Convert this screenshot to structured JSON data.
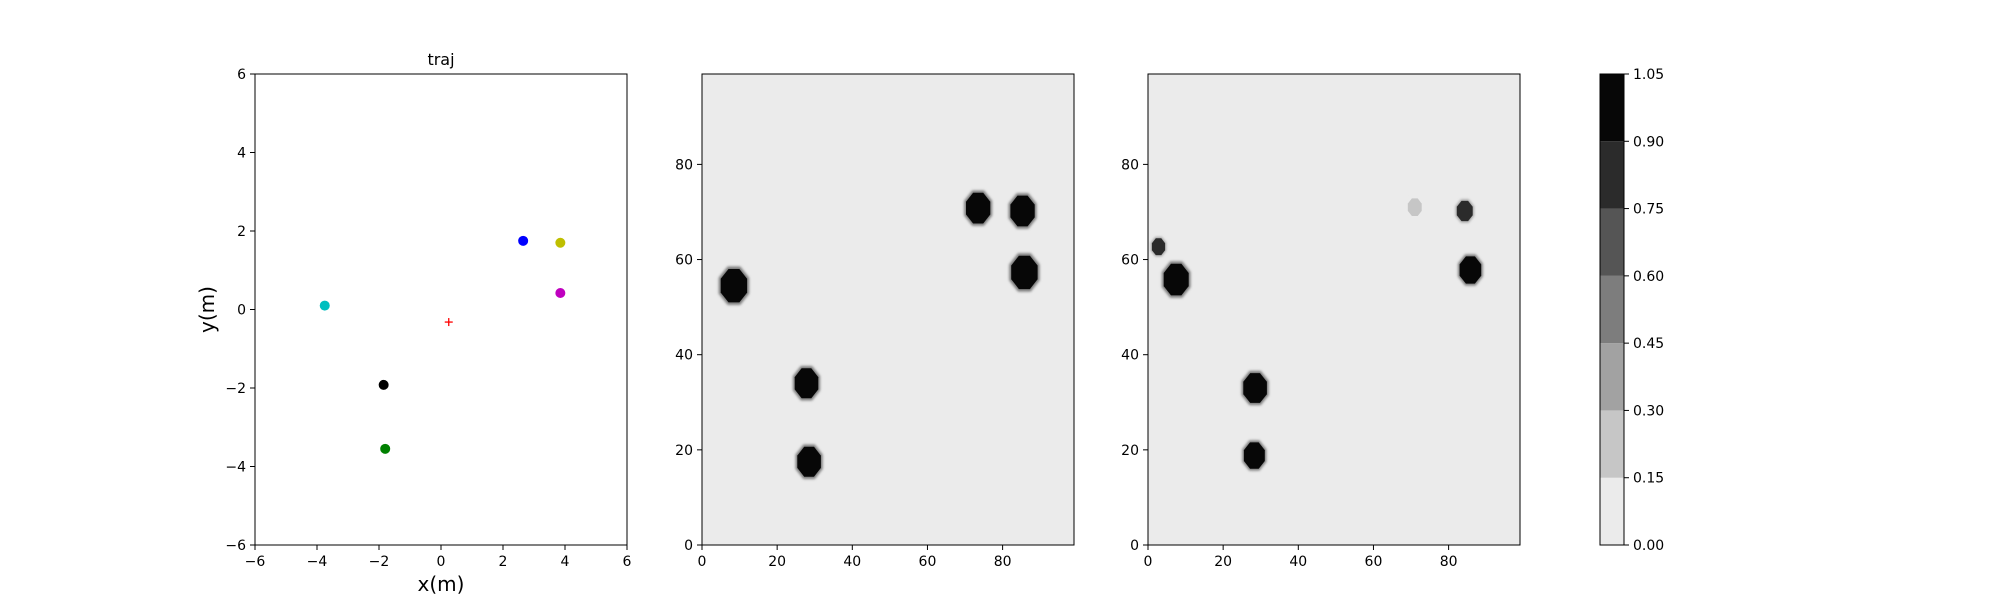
{
  "chart_data": [
    {
      "type": "scatter",
      "title": "traj",
      "xlabel": "x(m)",
      "ylabel": "y(m)",
      "xlim": [
        -6,
        6
      ],
      "ylim": [
        -6,
        6
      ],
      "xticks": [
        "−6",
        "−4",
        "−2",
        "0",
        "2",
        "4",
        "6"
      ],
      "yticks": [
        "−6",
        "−4",
        "−2",
        "0",
        "2",
        "4",
        "6"
      ],
      "grid": false,
      "points": [
        {
          "x": 2.65,
          "y": 1.75,
          "color": "#0000ff",
          "marker": "circle"
        },
        {
          "x": 3.85,
          "y": 1.7,
          "color": "#bfbf00",
          "marker": "circle"
        },
        {
          "x": 3.85,
          "y": 0.42,
          "color": "#bf00bf",
          "marker": "circle"
        },
        {
          "x": -3.75,
          "y": 0.1,
          "color": "#00bfbf",
          "marker": "circle"
        },
        {
          "x": -1.85,
          "y": -1.92,
          "color": "#000000",
          "marker": "circle"
        },
        {
          "x": -1.8,
          "y": -3.55,
          "color": "#008000",
          "marker": "circle"
        },
        {
          "x": 0.25,
          "y": -0.32,
          "color": "#ff0000",
          "marker": "plus"
        }
      ]
    },
    {
      "type": "heatmap",
      "title": "",
      "xlim": [
        0,
        99
      ],
      "ylim": [
        0,
        99
      ],
      "xticks": [
        "0",
        "20",
        "40",
        "60",
        "80"
      ],
      "yticks": [
        "0",
        "20",
        "40",
        "60",
        "80"
      ],
      "background_value": 0.08,
      "blobs": [
        {
          "x": 8.5,
          "y": 54.5,
          "r": 3.8,
          "value": 1.0
        },
        {
          "x": 27.8,
          "y": 34.0,
          "r": 3.4,
          "value": 1.0
        },
        {
          "x": 28.5,
          "y": 17.5,
          "r": 3.4,
          "value": 1.0
        },
        {
          "x": 73.5,
          "y": 70.8,
          "r": 3.5,
          "value": 1.0
        },
        {
          "x": 85.3,
          "y": 70.2,
          "r": 3.5,
          "value": 1.0
        },
        {
          "x": 85.8,
          "y": 57.3,
          "r": 3.8,
          "value": 1.0
        }
      ]
    },
    {
      "type": "heatmap",
      "title": "",
      "xlim": [
        0,
        99
      ],
      "ylim": [
        0,
        99
      ],
      "xticks": [
        "0",
        "20",
        "40",
        "60",
        "80"
      ],
      "yticks": [
        "0",
        "20",
        "40",
        "60",
        "80"
      ],
      "background_value": 0.08,
      "blobs": [
        {
          "x": 2.8,
          "y": 62.7,
          "r": 1.9,
          "value": 0.85
        },
        {
          "x": 7.5,
          "y": 55.8,
          "r": 3.6,
          "value": 1.0
        },
        {
          "x": 28.5,
          "y": 33.0,
          "r": 3.4,
          "value": 1.0
        },
        {
          "x": 28.3,
          "y": 18.8,
          "r": 3.0,
          "value": 1.0
        },
        {
          "x": 71.0,
          "y": 71.0,
          "r": 2.0,
          "value": 0.25
        },
        {
          "x": 84.3,
          "y": 70.2,
          "r": 2.3,
          "value": 0.85
        },
        {
          "x": 85.8,
          "y": 57.8,
          "r": 3.1,
          "value": 1.0
        }
      ]
    }
  ],
  "colorbar": {
    "levels": [
      0.0,
      0.15,
      0.3,
      0.45,
      0.6,
      0.75,
      0.9,
      1.05
    ],
    "tick_labels": [
      "0.00",
      "0.15",
      "0.30",
      "0.45",
      "0.60",
      "0.75",
      "0.90",
      "1.05"
    ],
    "colors": [
      "#ebebeb",
      "#c6c6c6",
      "#a2a2a2",
      "#7d7d7d",
      "#555555",
      "#2b2b2b",
      "#070707"
    ]
  }
}
